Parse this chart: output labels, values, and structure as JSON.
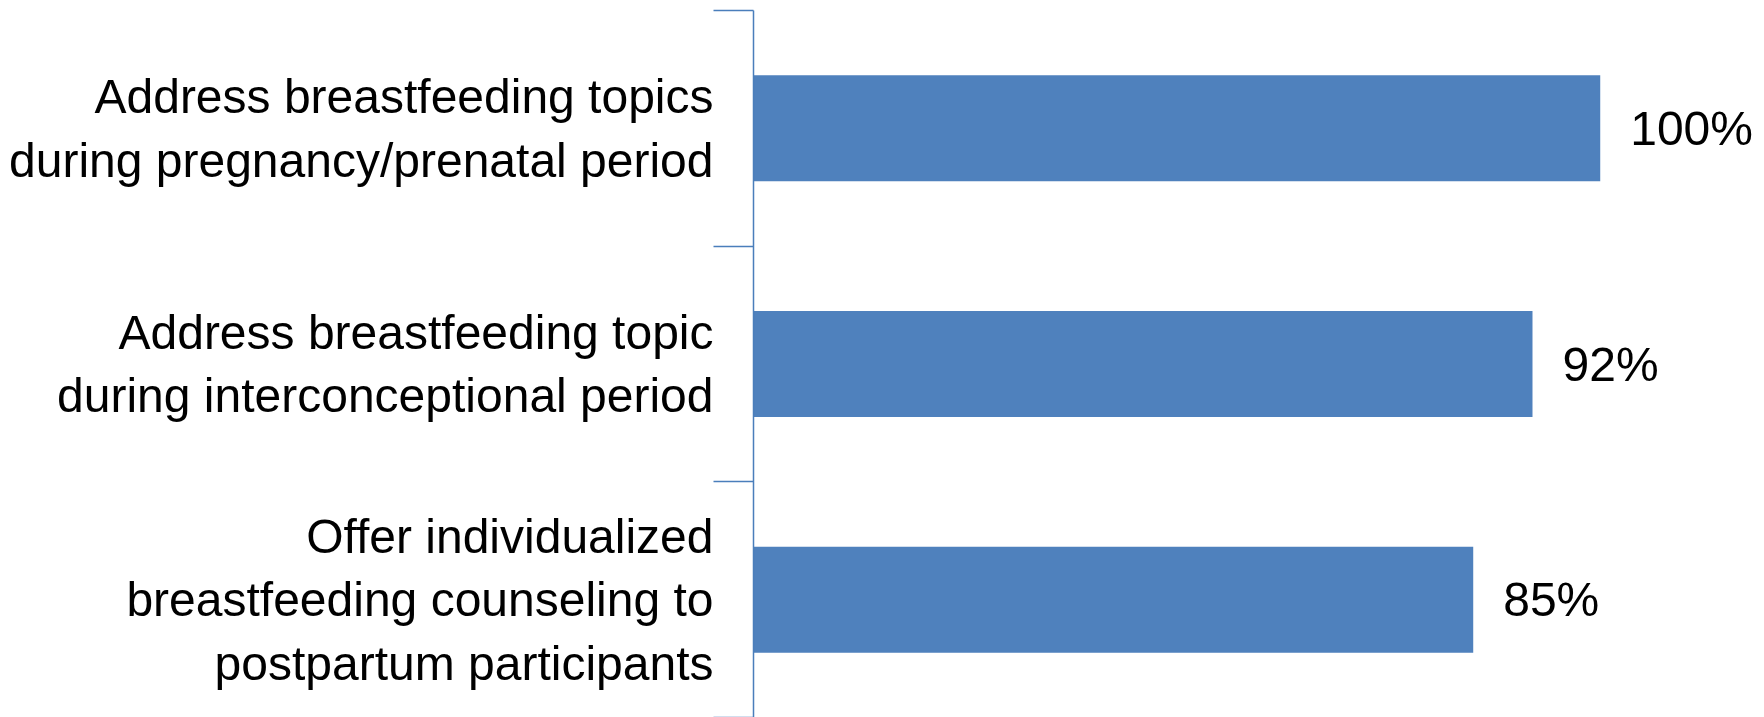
{
  "chart_data": {
    "type": "bar",
    "orientation": "horizontal",
    "categories": [
      "Address breastfeeding topics during pregnancy/prenatal period",
      "Address breastfeeding topic during interconceptional period",
      "Offer individualized breastfeeding counseling to postpartum participants"
    ],
    "values": [
      100,
      92,
      85
    ],
    "value_labels": [
      "100%",
      "92%",
      "85%"
    ],
    "color": "#4f81bd",
    "tick_labels": "y"
  }
}
